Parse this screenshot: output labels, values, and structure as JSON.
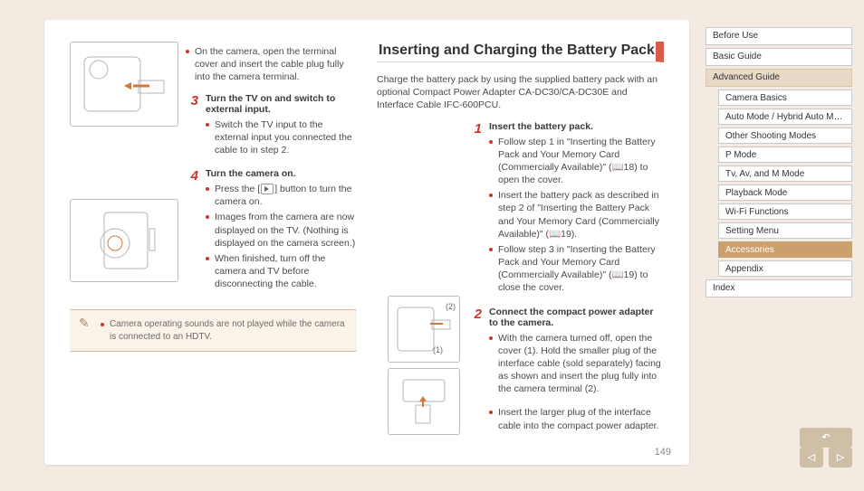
{
  "colors": {
    "page_bg": "#f3ebe2",
    "card_bg": "#ffffff",
    "accent_red": "#cc352d",
    "title_bar": "#d95c4a",
    "note_bg": "#fbf3e8",
    "note_border": "#d9b98e",
    "nav_active": "#cc9f6e",
    "nav_sub_bg": "#e8dac6",
    "btn_bg": "#d0bfa7"
  },
  "typography": {
    "base_pt": 10.5,
    "heading_pt": 16,
    "stepnum_pt": 15
  },
  "left": {
    "intro_bullets": [
      "On the camera, open the terminal cover and insert the cable plug fully into the camera terminal."
    ],
    "step3": {
      "num": "3",
      "title": "Turn the TV on and switch to external input.",
      "bullets": [
        "Switch the TV input to the external input you connected the cable to in step 2."
      ]
    },
    "step4": {
      "num": "4",
      "title": "Turn the camera on.",
      "bullets": [
        "Press the [ ▶ ] button to turn the camera on.",
        "Images from the camera are now displayed on the TV. (Nothing is displayed on the camera screen.)",
        "When finished, turn off the camera and TV before disconnecting the cable."
      ],
      "play_button_label": "playback-icon"
    },
    "note": "Camera operating sounds are not played while the camera is connected to an HDTV."
  },
  "right": {
    "heading": "Inserting and Charging the Battery Pack",
    "intro": "Charge the battery pack by using the supplied battery pack with an optional Compact Power Adapter CA-DC30/CA-DC30E and Interface Cable IFC-600PCU.",
    "step1": {
      "num": "1",
      "title": "Insert the battery pack.",
      "bullets": [
        "Follow step 1 in \"Inserting the Battery Pack and Your Memory Card (Commercially Available)\" (📖18) to open the cover.",
        "Insert the battery pack as described in step 2 of \"Inserting the Battery Pack and Your Memory Card (Commercially Available)\" (📖19).",
        "Follow step 3 in \"Inserting the Battery Pack and Your Memory Card (Commercially Available)\" (📖19) to close the cover."
      ]
    },
    "step2": {
      "num": "2",
      "title": "Connect the compact power adapter to the camera.",
      "bullets": [
        "With the camera turned off, open the cover (1). Hold the smaller plug of the interface cable (sold separately) facing as shown and insert the plug fully into the camera terminal (2).",
        "Insert the larger plug of the interface cable into the compact power adapter."
      ],
      "annotations": {
        "a1": "(1)",
        "a2": "(2)"
      }
    }
  },
  "nav": {
    "items": [
      {
        "label": "Before Use",
        "indent": false
      },
      {
        "label": "Basic Guide",
        "indent": false
      },
      {
        "label": "Advanced Guide",
        "indent": false,
        "style": "top-active"
      },
      {
        "label": "Camera Basics",
        "indent": true
      },
      {
        "label": "Auto Mode / Hybrid Auto Mode",
        "indent": true
      },
      {
        "label": "Other Shooting Modes",
        "indent": true
      },
      {
        "label": "P Mode",
        "indent": true
      },
      {
        "label": "Tv, Av, and M Mode",
        "indent": true
      },
      {
        "label": "Playback Mode",
        "indent": true
      },
      {
        "label": "Wi-Fi Functions",
        "indent": true
      },
      {
        "label": "Setting Menu",
        "indent": true
      },
      {
        "label": "Accessories",
        "indent": true,
        "style": "active"
      },
      {
        "label": "Appendix",
        "indent": true
      },
      {
        "label": "Index",
        "indent": false
      }
    ]
  },
  "footer": {
    "page_number": "149",
    "prev": "◁",
    "next": "▷",
    "back": "↶"
  }
}
